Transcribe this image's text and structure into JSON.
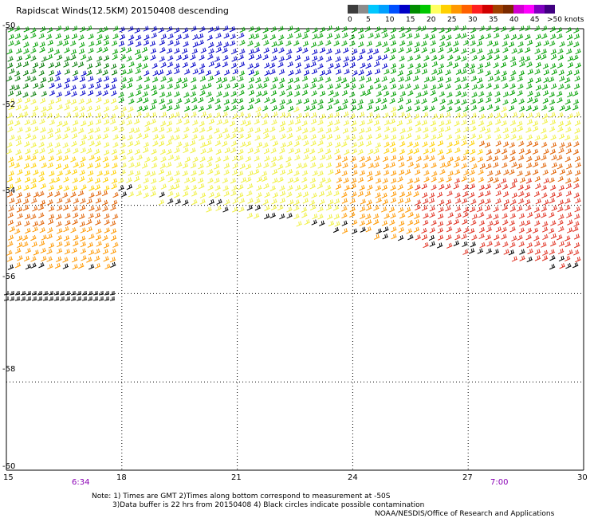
{
  "title": "Rapidscat Winds(12.5KM) 20150408 descending",
  "legend": {
    "colors": [
      "#3c3c3c",
      "#8c8c8c",
      "#00c8ff",
      "#00a0ff",
      "#0050ff",
      "#0000c8",
      "#008c00",
      "#00c800",
      "#ffff60",
      "#ffd000",
      "#ff9800",
      "#ff6000",
      "#ff2020",
      "#d00000",
      "#a04000",
      "#7a2a00",
      "#d000d0",
      "#ff00ff",
      "#8000c0",
      "#400080"
    ],
    "labels": [
      "0",
      "5",
      "10",
      "15",
      "20",
      "25",
      "30",
      "35",
      "40",
      "45",
      ">50 knots"
    ]
  },
  "axes": {
    "lon_ticks": [
      "15",
      "18",
      "21",
      "24",
      "27",
      "30"
    ],
    "lat_ticks": [
      "-50",
      "-52",
      "-54",
      "-56",
      "-58",
      "-60"
    ]
  },
  "times": [
    "6:34",
    "7:00"
  ],
  "notes": {
    "line1": "Note: 1) Times are GMT 2)Times along bottom correspond to measurement at -50S",
    "line2": "3)Data buffer is 22 hrs from 20150408 4) Black circles indicate possible contamination",
    "line3": "NOAA/NESDIS/Office of Research and Applications"
  }
}
